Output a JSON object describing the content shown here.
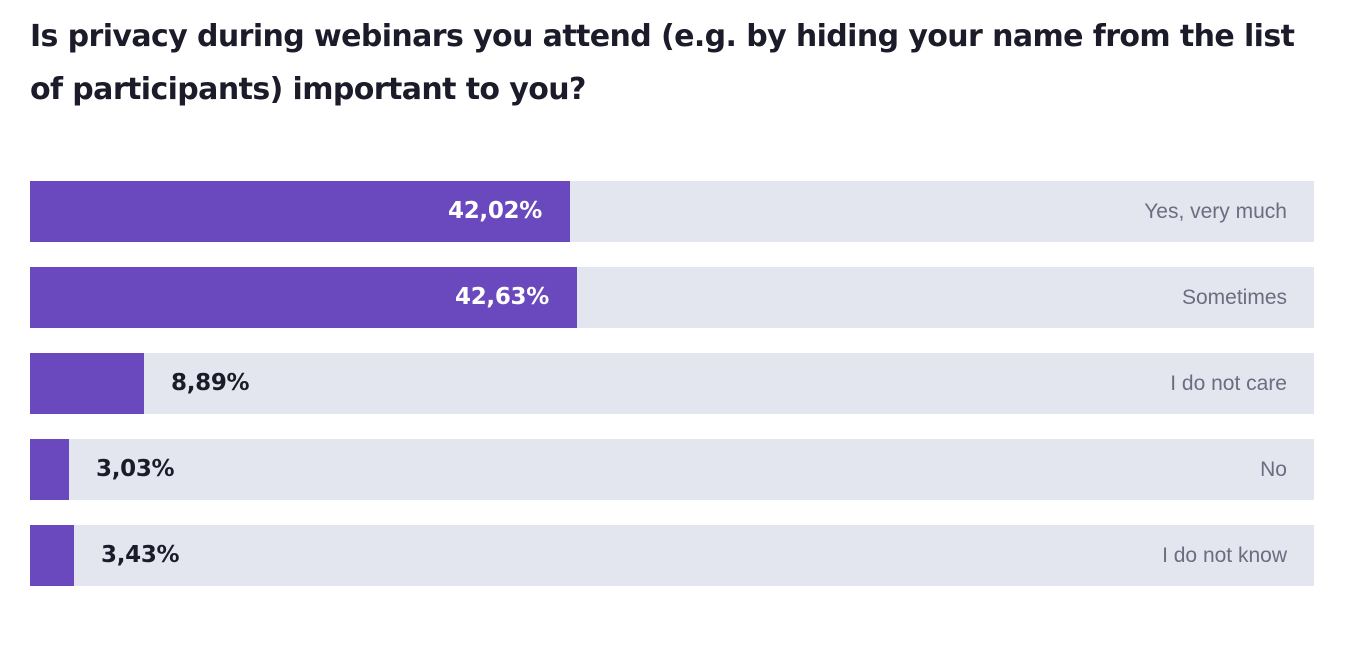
{
  "chart_data": {
    "type": "bar",
    "orientation": "horizontal",
    "title": "Is privacy during webinars you attend (e.g. by hiding your name from the list of participants) important to you?",
    "categories": [
      "Yes, very much",
      "Sometimes",
      "I do not care",
      "No",
      "I do not know"
    ],
    "values": [
      42.02,
      42.63,
      8.89,
      3.03,
      3.43
    ],
    "value_labels": [
      "42,02%",
      "42,63%",
      "8,89%",
      "3,03%",
      "3,43%"
    ],
    "unit": "%",
    "xlim": [
      0,
      100
    ],
    "grid": false,
    "legend": "none",
    "bar_color": "#6a48be",
    "track_color": "#e3e5ef"
  }
}
